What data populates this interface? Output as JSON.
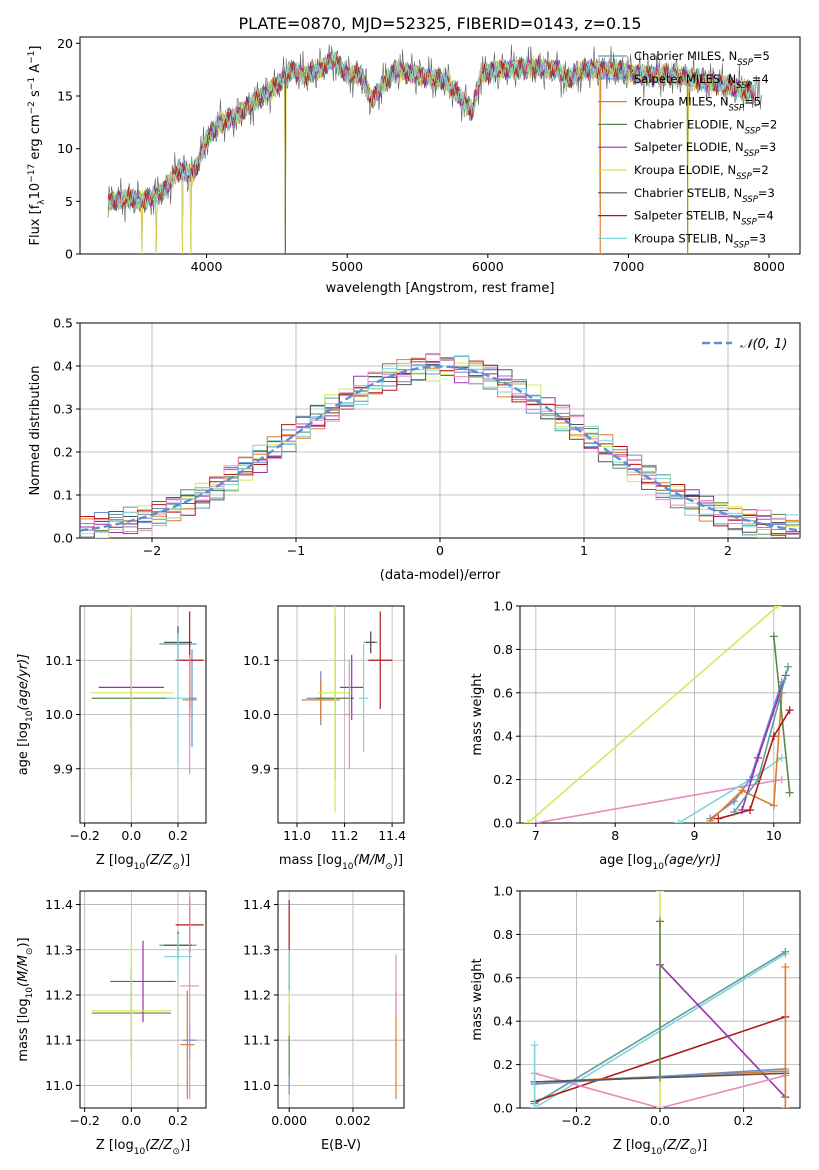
{
  "figure": {
    "title": "PLATE=0870, MJD=52325, FIBERID=0143, z=0.15"
  },
  "palette": {
    "Chabrier MILES": "#5f9ea0",
    "Salpeter MILES": "#6a8fd0",
    "Kroupa MILES": "#e07b2a",
    "Chabrier ELODIE": "#5a8a4a",
    "Salpeter ELODIE": "#9b30b0",
    "Kroupa ELODIE": "#d4e85a",
    "Chabrier STELIB": "#555555",
    "Salpeter STELIB": "#b01818",
    "Kroupa STELIB": "#7fd4dc",
    "extra_pink": "#e68ac0",
    "normal_dashed": "#5b8fd6"
  },
  "chart_data": [
    {
      "id": "spectrum",
      "type": "line",
      "xlabel": "wavelength [Angstrom, rest frame]",
      "ylabel_parts": [
        "Flux [f",
        "λ",
        "10",
        "−17",
        " erg cm",
        "−2",
        " s",
        "−1",
        " A",
        "−1",
        "]"
      ],
      "xlim": [
        3100,
        8220
      ],
      "ylim": [
        0,
        20.6
      ],
      "xticks": [
        4000,
        5000,
        6000,
        7000,
        8000
      ],
      "yticks": [
        0,
        5,
        10,
        15,
        20
      ],
      "grid": false,
      "legend_placement": "top-right",
      "legend": [
        {
          "name": "Chabrier MILES",
          "n": "5"
        },
        {
          "name": "Salpeter MILES",
          "n": "4"
        },
        {
          "name": "Kroupa MILES",
          "n": "5"
        },
        {
          "name": "Chabrier ELODIE",
          "n": "2"
        },
        {
          "name": "Salpeter ELODIE",
          "n": "3"
        },
        {
          "name": "Kroupa ELODIE",
          "n": "2"
        },
        {
          "name": "Chabrier STELIB",
          "n": "3"
        },
        {
          "name": "Salpeter STELIB",
          "n": "4"
        },
        {
          "name": "Kroupa STELIB",
          "n": "3"
        }
      ],
      "continuum_x": [
        3300,
        3450,
        3550,
        3700,
        3800,
        3900,
        3950,
        4000,
        4100,
        4200,
        4300,
        4400,
        4500,
        4600,
        4700,
        4800,
        4900,
        5000,
        5100,
        5175,
        5250,
        5350,
        5500,
        5700,
        5890,
        5950,
        6100,
        6300,
        6500,
        6560,
        6700,
        6900,
        7100,
        7300,
        7500,
        7700,
        7850,
        8000
      ],
      "continuum_y": [
        5.0,
        5.3,
        5.0,
        6.0,
        8.0,
        7.5,
        9.0,
        11.0,
        12.5,
        13.0,
        14.0,
        15.0,
        16.0,
        17.5,
        17.0,
        17.5,
        18.5,
        17.0,
        17.0,
        14.5,
        16.0,
        17.5,
        17.0,
        16.5,
        13.5,
        17.0,
        17.5,
        17.8,
        17.5,
        16.5,
        17.5,
        17.5,
        17.0,
        17.0,
        16.5,
        16.0,
        15.5,
        15.0
      ],
      "dips_x": [
        3540,
        3640,
        3830,
        3890,
        4560,
        6800,
        7420
      ]
    },
    {
      "id": "residuals",
      "type": "line",
      "xlabel": "(data-model)/error",
      "ylabel": "Normed distribution",
      "xlim": [
        -2.5,
        2.5
      ],
      "ylim": [
        0,
        0.5
      ],
      "xticks": [
        -2,
        -1,
        0,
        1,
        2
      ],
      "xtick_labels": [
        "−2",
        "−1",
        "0",
        "1",
        "2"
      ],
      "yticks": [
        0.0,
        0.1,
        0.2,
        0.3,
        0.4,
        0.5
      ],
      "ytick_labels": [
        "0.0",
        "0.1",
        "0.2",
        "0.3",
        "0.4",
        "0.5"
      ],
      "grid": true,
      "legend_placement": "top-right",
      "legend": "𝒩(0, 1)",
      "bin_width": 0.1
    },
    {
      "id": "age_vs_Z",
      "type": "scatter",
      "xlabel_parts": [
        "Z [log",
        "10",
        "(Z/Z",
        "⊙",
        ")]"
      ],
      "ylabel_parts": [
        "age  [log",
        "10",
        "(age/yr)]"
      ],
      "xlim": [
        -0.22,
        0.32
      ],
      "ylim": [
        9.8,
        10.2
      ],
      "xticks": [
        -0.2,
        0.0,
        0.2
      ],
      "xtick_labels": [
        "−0.2",
        "0.0",
        "0.2"
      ],
      "yticks": [
        9.9,
        10.0,
        10.1
      ],
      "ytick_labels": [
        "9.9",
        "10.0",
        "10.1"
      ],
      "grid": true,
      "errorbars": [
        {
          "s": "Chabrier MILES",
          "x": 0.2,
          "y": 10.13,
          "xe": 0.08,
          "ye": 0.03
        },
        {
          "s": "Salpeter MILES",
          "x": 0.26,
          "y": 10.03,
          "xe": 0.02,
          "ye": 0.09
        },
        {
          "s": "Kroupa MILES",
          "x": 0.25,
          "y": 10.027,
          "xe": 0.03,
          "ye": 0.03
        },
        {
          "s": "Chabrier ELODIE",
          "x": 0.0,
          "y": 10.03,
          "xe": 0.17,
          "ye": 0.15
        },
        {
          "s": "Salpeter ELODIE",
          "x": 0.0,
          "y": 10.05,
          "xe": 0.14,
          "ye": 0.07
        },
        {
          "s": "Kroupa ELODIE",
          "x": 0.0,
          "y": 10.04,
          "xe": 0.18,
          "ye": 0.21
        },
        {
          "s": "Chabrier STELIB",
          "x": 0.2,
          "y": 10.133,
          "xe": 0.06,
          "ye": 0.03
        },
        {
          "s": "Salpeter STELIB",
          "x": 0.25,
          "y": 10.1,
          "xe": 0.06,
          "ye": 0.09
        },
        {
          "s": "Kroupa STELIB",
          "x": 0.2,
          "y": 10.03,
          "xe": 0.05,
          "ye": 0.12
        },
        {
          "s": "extra_pink",
          "x": 0.25,
          "y": 10.0,
          "xe": 0.01,
          "ye": 0.11
        }
      ]
    },
    {
      "id": "age_vs_mass",
      "type": "scatter",
      "xlabel_parts": [
        "mass [log",
        "10",
        "(M/M",
        "⊙",
        ")]"
      ],
      "xlim": [
        10.92,
        11.45
      ],
      "ylim": [
        9.8,
        10.2
      ],
      "xticks": [
        11.0,
        11.2,
        11.4
      ],
      "xtick_labels": [
        "11.0",
        "11.2",
        "11.4"
      ],
      "yticks": [
        9.9,
        10.0,
        10.1
      ],
      "ytick_labels": [
        "9.9",
        "10.0",
        "10.1"
      ],
      "grid": true,
      "errorbars": [
        {
          "s": "Chabrier MILES",
          "x": 11.31,
          "y": 10.133,
          "xe": 0.03,
          "ye": 0.02
        },
        {
          "s": "Salpeter MILES",
          "x": 11.1,
          "y": 10.03,
          "xe": 0.06,
          "ye": 0.05
        },
        {
          "s": "Kroupa MILES",
          "x": 11.1,
          "y": 10.027,
          "xe": 0.08,
          "ye": 0.04
        },
        {
          "s": "Chabrier ELODIE",
          "x": 11.16,
          "y": 10.03,
          "xe": 0.08,
          "ye": 0.15
        },
        {
          "s": "Salpeter ELODIE",
          "x": 11.23,
          "y": 10.05,
          "xe": 0.05,
          "ye": 0.06
        },
        {
          "s": "Kroupa ELODIE",
          "x": 11.16,
          "y": 10.04,
          "xe": 0.07,
          "ye": 0.22
        },
        {
          "s": "Chabrier STELIB",
          "x": 11.31,
          "y": 10.133,
          "xe": 0.02,
          "ye": 0.02
        },
        {
          "s": "Salpeter STELIB",
          "x": 11.35,
          "y": 10.1,
          "xe": 0.05,
          "ye": 0.09
        },
        {
          "s": "Kroupa STELIB",
          "x": 11.28,
          "y": 10.03,
          "xe": 0.02,
          "ye": 0.1
        },
        {
          "s": "extra_pink",
          "x": 11.22,
          "y": 10.0,
          "xe": 0.02,
          "ye": 0.1
        }
      ]
    },
    {
      "id": "massweight_vs_age",
      "type": "line",
      "xlabel_parts": [
        "age  [log",
        "10",
        "(age/yr)]"
      ],
      "ylabel": "mass weight",
      "xlim": [
        6.8,
        10.33
      ],
      "ylim": [
        0,
        1
      ],
      "xticks": [
        7,
        8,
        9,
        10
      ],
      "yticks": [
        0.0,
        0.2,
        0.4,
        0.6,
        0.8,
        1.0
      ],
      "ytick_labels": [
        "0.0",
        "0.2",
        "0.4",
        "0.6",
        "0.8",
        "1.0"
      ],
      "grid": true,
      "series": [
        {
          "s": "Kroupa ELODIE",
          "x": [
            6.9,
            10.05
          ],
          "y": [
            0.0,
            1.0
          ]
        },
        {
          "s": "extra_pink",
          "x": [
            7.0,
            10.1
          ],
          "y": [
            0.0,
            0.2
          ]
        },
        {
          "s": "Kroupa STELIB",
          "x": [
            8.8,
            9.7,
            10.1
          ],
          "y": [
            0.0,
            0.2,
            0.3
          ]
        },
        {
          "s": "Salpeter MILES",
          "x": [
            9.2,
            9.5,
            9.7,
            10.1
          ],
          "y": [
            0.02,
            0.1,
            0.2,
            0.65
          ]
        },
        {
          "s": "Kroupa MILES",
          "x": [
            9.2,
            9.6,
            10.0,
            10.1
          ],
          "y": [
            0.01,
            0.15,
            0.08,
            0.6
          ]
        },
        {
          "s": "Chabrier ELODIE",
          "x": [
            10.0,
            10.2
          ],
          "y": [
            0.86,
            0.14
          ]
        },
        {
          "s": "Salpeter ELODIE",
          "x": [
            9.6,
            9.8,
            10.15
          ],
          "y": [
            0.06,
            0.3,
            0.68
          ]
        },
        {
          "s": "Salpeter STELIB",
          "x": [
            9.3,
            9.7,
            10.0,
            10.2
          ],
          "y": [
            0.02,
            0.06,
            0.4,
            0.52
          ]
        },
        {
          "s": "Chabrier MILES",
          "x": [
            9.5,
            9.8,
            10.18
          ],
          "y": [
            0.05,
            0.2,
            0.72
          ]
        }
      ]
    },
    {
      "id": "mass_vs_Z",
      "type": "scatter",
      "xlabel_parts": [
        "Z [log",
        "10",
        "(Z/Z",
        "⊙",
        ")]"
      ],
      "ylabel_parts": [
        "mass [log",
        "10",
        "(M/M",
        "⊙",
        ")]"
      ],
      "xlim": [
        -0.22,
        0.32
      ],
      "ylim": [
        10.95,
        11.43
      ],
      "xticks": [
        -0.2,
        0.0,
        0.2
      ],
      "xtick_labels": [
        "−0.2",
        "0.0",
        "0.2"
      ],
      "yticks": [
        11.0,
        11.1,
        11.2,
        11.3,
        11.4
      ],
      "ytick_labels": [
        "11.0",
        "11.1",
        "11.2",
        "11.3",
        "11.4"
      ],
      "grid": true,
      "errorbars": [
        {
          "s": "Chabrier MILES",
          "x": 0.2,
          "y": 11.31,
          "xe": 0.08,
          "ye": 0.03
        },
        {
          "s": "Salpeter MILES",
          "x": 0.25,
          "y": 11.1,
          "xe": 0.03,
          "ye": 0.04
        },
        {
          "s": "Kroupa MILES",
          "x": 0.24,
          "y": 11.09,
          "xe": 0.03,
          "ye": 0.12
        },
        {
          "s": "Chabrier ELODIE",
          "x": 0.0,
          "y": 11.16,
          "xe": 0.17,
          "ye": 0.1
        },
        {
          "s": "Salpeter ELODIE",
          "x": 0.05,
          "y": 11.23,
          "xe": 0.14,
          "ye": 0.09
        },
        {
          "s": "Kroupa ELODIE",
          "x": 0.0,
          "y": 11.165,
          "xe": 0.17,
          "ye": 0.15
        },
        {
          "s": "Chabrier STELIB",
          "x": 0.2,
          "y": 11.31,
          "xe": 0.06,
          "ye": 0.03
        },
        {
          "s": "Salpeter STELIB",
          "x": 0.25,
          "y": 11.355,
          "xe": 0.06,
          "ye": 0.06
        },
        {
          "s": "Kroupa STELIB",
          "x": 0.2,
          "y": 11.285,
          "xe": 0.06,
          "ye": 0.05
        },
        {
          "s": "extra_pink",
          "x": 0.25,
          "y": 11.22,
          "xe": 0.04,
          "ye": 0.25
        }
      ]
    },
    {
      "id": "mass_vs_EBV",
      "type": "scatter",
      "xlabel": "E(B-V)",
      "xlim": [
        -0.00035,
        0.0036
      ],
      "ylim": [
        10.95,
        11.43
      ],
      "xticks": [
        0.0,
        0.002
      ],
      "xtick_labels": [
        "0.000",
        "0.002"
      ],
      "yticks": [
        11.0,
        11.1,
        11.2,
        11.3,
        11.4
      ],
      "ytick_labels": [
        "11.0",
        "11.1",
        "11.2",
        "11.3",
        "11.4"
      ],
      "grid": true,
      "errorbars": [
        {
          "s": "Salpeter STELIB",
          "x": 0.0,
          "y": 11.31,
          "xe": 0.0,
          "ye": 0.1
        },
        {
          "s": "Kroupa STELIB",
          "x": 0.0,
          "y": 11.25,
          "xe": 0.0,
          "ye": 0.05
        },
        {
          "s": "Chabrier ELODIE",
          "x": 0.0,
          "y": 11.1,
          "xe": 0.0,
          "ye": 0.08
        },
        {
          "s": "Kroupa ELODIE",
          "x": 0.0,
          "y": 11.16,
          "xe": 0.0,
          "ye": 0.05
        },
        {
          "s": "Salpeter MILES",
          "x": 0.0,
          "y": 11.0,
          "xe": 0.0,
          "ye": 0.02
        },
        {
          "s": "Kroupa MILES",
          "x": 0.00335,
          "y": 11.09,
          "xe": 0.0,
          "ye": 0.12
        },
        {
          "s": "extra_pink",
          "x": 0.00335,
          "y": 11.22,
          "xe": 0.0,
          "ye": 0.07
        }
      ]
    },
    {
      "id": "massweight_vs_Z",
      "type": "line",
      "xlabel_parts": [
        "Z [log",
        "10",
        "(Z/Z",
        "⊙",
        ")]"
      ],
      "ylabel": "mass weight",
      "xlim": [
        -0.335,
        0.335
      ],
      "ylim": [
        0,
        1
      ],
      "xticks": [
        -0.2,
        0.0,
        0.2
      ],
      "xtick_labels": [
        "−0.2",
        "0.0",
        "0.2"
      ],
      "yticks": [
        0.0,
        0.2,
        0.4,
        0.6,
        0.8,
        1.0
      ],
      "ytick_labels": [
        "0.0",
        "0.2",
        "0.4",
        "0.6",
        "0.8",
        "1.0"
      ],
      "grid": true,
      "series": [
        {
          "s": "Kroupa STELIB",
          "x": [
            -0.3,
            0.3
          ],
          "y": [
            0.0,
            0.71
          ]
        },
        {
          "s": "Chabrier MILES",
          "x": [
            -0.3,
            0.3
          ],
          "y": [
            0.02,
            0.72
          ]
        },
        {
          "s": "Salpeter STELIB",
          "x": [
            -0.3,
            0.3
          ],
          "y": [
            0.03,
            0.42
          ]
        },
        {
          "s": "Salpeter ELODIE",
          "x": [
            0.0,
            0.3
          ],
          "y": [
            0.66,
            0.05
          ]
        },
        {
          "s": "extra_pink",
          "x": [
            -0.3,
            0.0,
            0.3
          ],
          "y": [
            0.16,
            0.0,
            0.15
          ]
        },
        {
          "s": "Kroupa MILES",
          "x": [
            -0.3,
            0.3
          ],
          "y": [
            0.12,
            0.17
          ]
        },
        {
          "s": "Salpeter MILES",
          "x": [
            -0.3,
            0.3
          ],
          "y": [
            0.11,
            0.18
          ]
        },
        {
          "s": "Chabrier STELIB",
          "x": [
            -0.3,
            0.3
          ],
          "y": [
            0.12,
            0.16
          ]
        },
        {
          "s": "Kroupa ELODIE",
          "x": [
            0.0,
            0.0
          ],
          "y": [
            0.0,
            1.0
          ]
        },
        {
          "s": "Chabrier ELODIE",
          "x": [
            0.0,
            0.0
          ],
          "y": [
            0.14,
            0.86
          ]
        },
        {
          "s": "Kroupa STELIB",
          "x": [
            -0.3,
            -0.3
          ],
          "y": [
            0.0,
            0.29
          ]
        },
        {
          "s": "Kroupa MILES",
          "x": [
            0.3,
            0.3
          ],
          "y": [
            0.0,
            0.65
          ]
        }
      ]
    }
  ]
}
